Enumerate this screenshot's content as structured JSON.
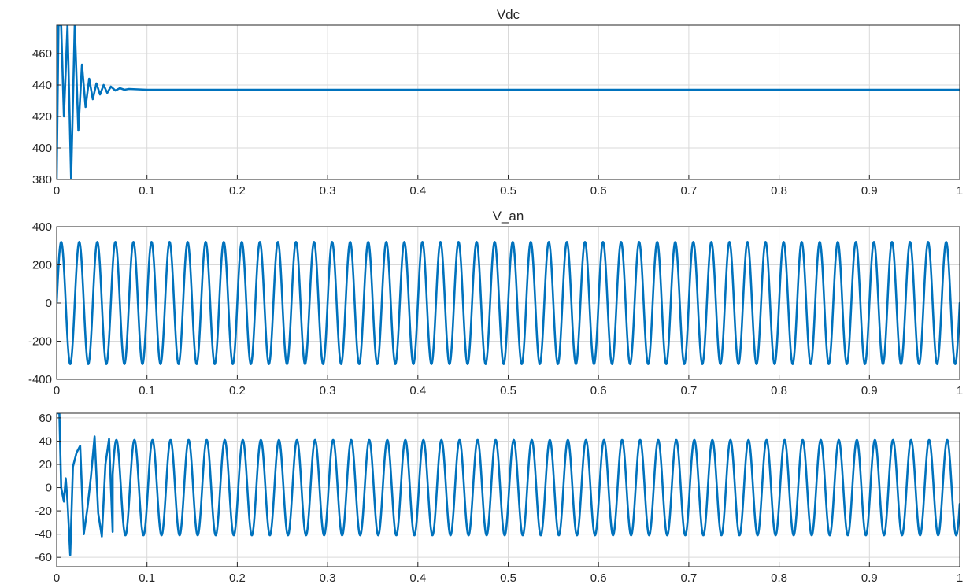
{
  "chart_data": [
    {
      "type": "line",
      "title": "Vdc",
      "xlabel": "",
      "ylabel": "",
      "xlim": [
        0,
        1
      ],
      "ylim": [
        380,
        478
      ],
      "xticks": [
        "0",
        "0.1",
        "0.2",
        "0.3",
        "0.4",
        "0.5",
        "0.6",
        "0.7",
        "0.8",
        "0.9",
        "1"
      ],
      "yticks": [
        "380",
        "400",
        "420",
        "440",
        "460"
      ],
      "grid": true,
      "series": [
        {
          "color": "#0072BD",
          "x": [
            0,
            0.002,
            0.005,
            0.008,
            0.012,
            0.016,
            0.02,
            0.024,
            0.028,
            0.032,
            0.036,
            0.04,
            0.044,
            0.048,
            0.052,
            0.056,
            0.06,
            0.065,
            0.07,
            0.075,
            0.08,
            0.1,
            0.2,
            0.3,
            0.4,
            0.5,
            0.6,
            0.7,
            0.8,
            0.9,
            1.0
          ],
          "y": [
            380,
            478,
            478,
            420,
            478,
            380,
            478,
            411,
            453,
            426,
            444,
            431,
            441,
            434,
            440,
            435,
            439,
            436.5,
            438,
            437,
            437.5,
            437,
            437,
            437,
            437,
            437,
            437,
            437,
            437,
            437,
            437
          ]
        }
      ]
    },
    {
      "type": "line",
      "title": "V_an",
      "xlabel": "",
      "ylabel": "",
      "xlim": [
        0,
        1
      ],
      "ylim": [
        -400,
        400
      ],
      "xticks": [
        "0",
        "0.1",
        "0.2",
        "0.3",
        "0.4",
        "0.5",
        "0.6",
        "0.7",
        "0.8",
        "0.9",
        "1"
      ],
      "yticks": [
        "-400",
        "-200",
        "0",
        "200",
        "400"
      ],
      "grid": true,
      "series": [
        {
          "color": "#0072BD",
          "description_of_signal": "sinusoid",
          "amplitude": 320,
          "frequency_hz": 50,
          "phase_deg": 0
        }
      ]
    },
    {
      "type": "line",
      "title": "",
      "xlabel": "",
      "ylabel": "",
      "xlim": [
        0,
        1
      ],
      "ylim": [
        -68,
        64
      ],
      "xticks": [
        "0",
        "0.1",
        "0.2",
        "0.3",
        "0.4",
        "0.5",
        "0.6",
        "0.7",
        "0.8",
        "0.9",
        "1"
      ],
      "yticks": [
        "-60",
        "-40",
        "-20",
        "0",
        "20",
        "40",
        "60"
      ],
      "grid": true,
      "series": [
        {
          "color": "#0072BD",
          "amplitude": 41,
          "frequency_hz": 50,
          "phase_deg": -20,
          "initial_transient": {
            "x": [
              0,
              0.003,
              0.005,
              0.008,
              0.01,
              0.012,
              0.015,
              0.018,
              0.022,
              0.026,
              0.03,
              0.034,
              0.038,
              0.042,
              0.046,
              0.05,
              0.054,
              0.058,
              0.062
            ],
            "y": [
              64,
              64,
              0,
              -12,
              8,
              -12,
              -58,
              18,
              30,
              36,
              -40,
              -18,
              10,
              44,
              -22,
              -42,
              20,
              42,
              -38
            ]
          }
        }
      ]
    }
  ]
}
